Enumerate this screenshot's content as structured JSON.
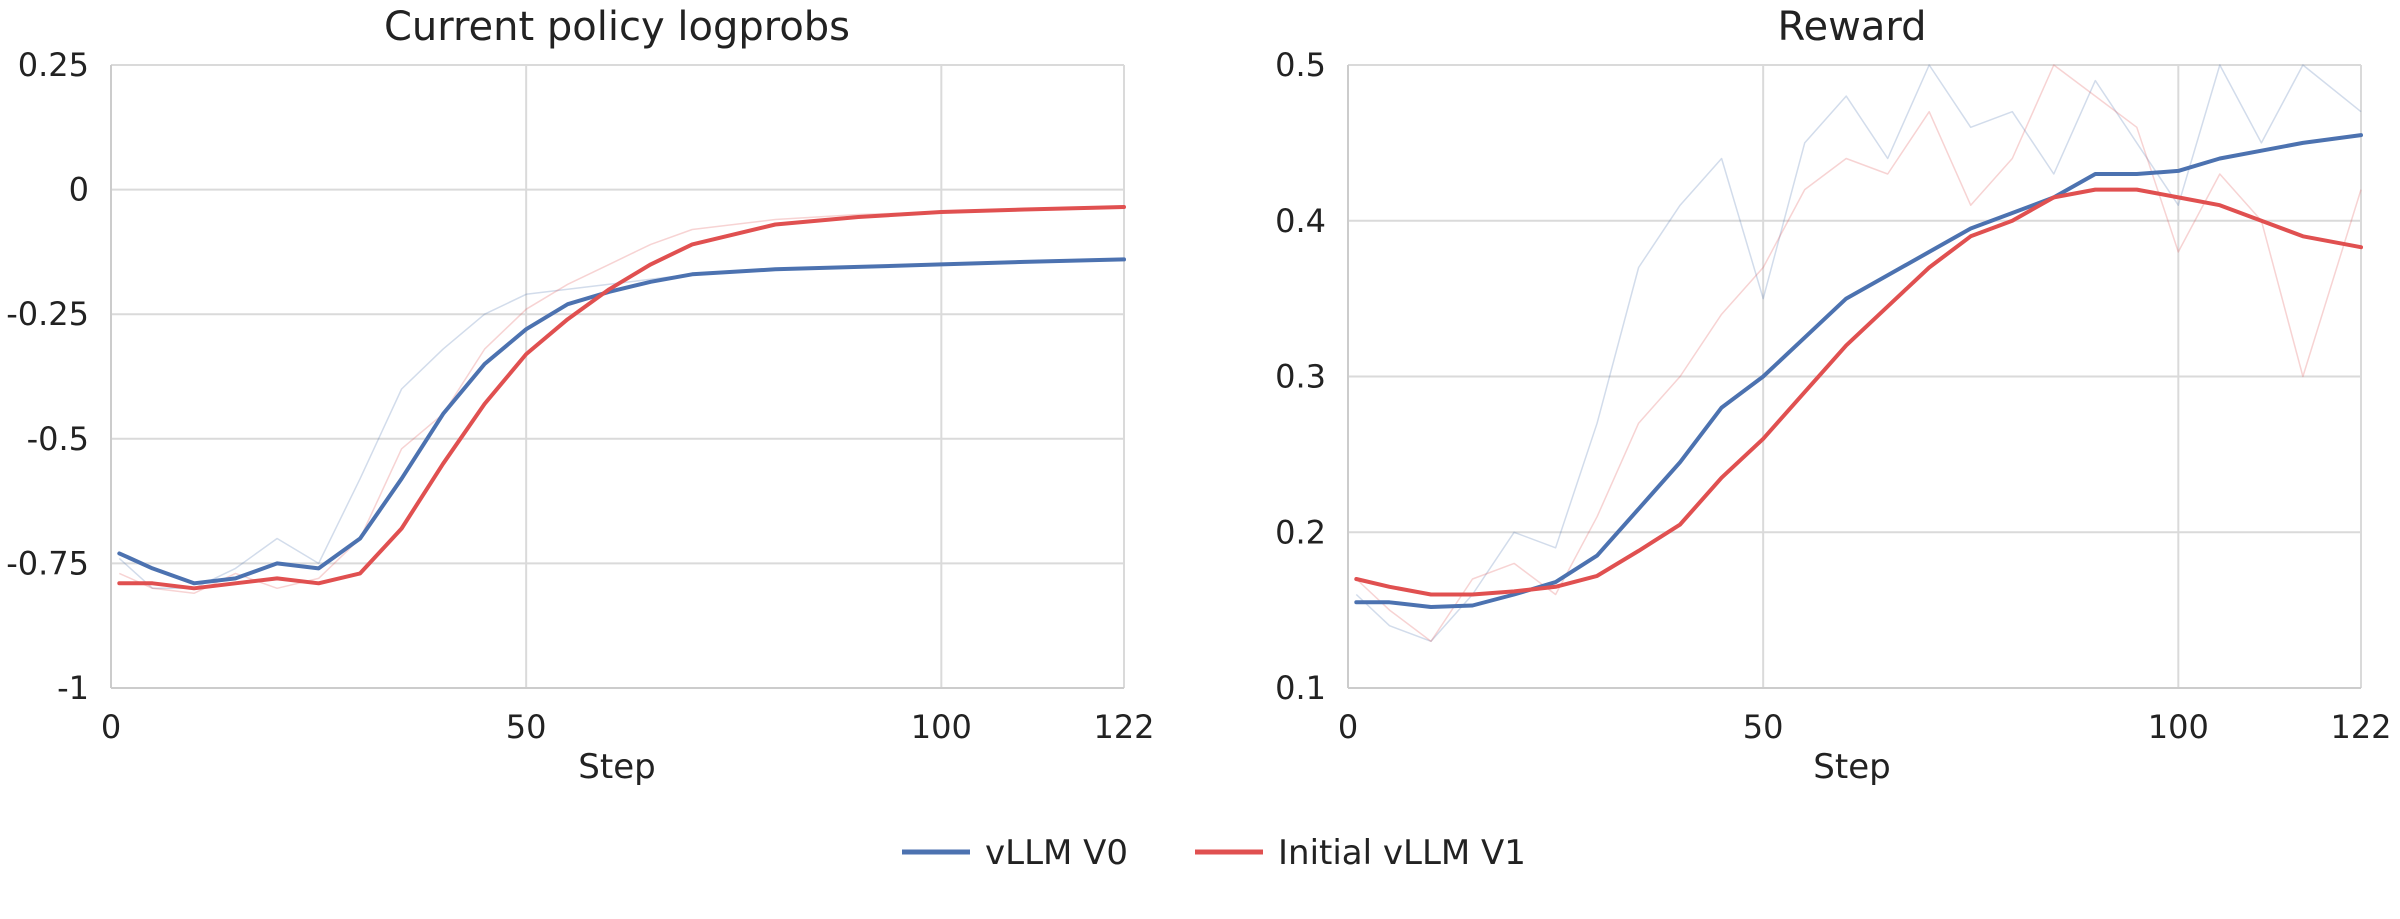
{
  "legend": {
    "placement": "bottom-center",
    "items": [
      {
        "label": "vLLM V0",
        "color": "#4c72b0"
      },
      {
        "label": "Initial vLLM V1",
        "color": "#e05050"
      }
    ]
  },
  "chart_data": [
    {
      "type": "line",
      "title": "Current policy logprobs",
      "xlabel": "Step",
      "ylabel": "",
      "xlim": [
        0,
        122
      ],
      "ylim": [
        -1,
        0.25
      ],
      "xticks": [
        0,
        50,
        100,
        122
      ],
      "xtick_labels": [
        "0",
        "50",
        "100",
        "122"
      ],
      "yticks": [
        -1,
        -0.75,
        -0.5,
        -0.25,
        0,
        0.25
      ],
      "ytick_labels": [
        "-1",
        "-0.75",
        "-0.5",
        "-0.25",
        "0",
        "0.25"
      ],
      "grid": true,
      "series": [
        {
          "name": "vLLM V0",
          "color": "#4c72b0",
          "x": [
            1,
            5,
            10,
            15,
            20,
            25,
            30,
            35,
            40,
            45,
            50,
            55,
            60,
            65,
            70,
            80,
            90,
            100,
            110,
            122
          ],
          "y": [
            -0.73,
            -0.76,
            -0.79,
            -0.78,
            -0.75,
            -0.76,
            -0.7,
            -0.58,
            -0.45,
            -0.35,
            -0.28,
            -0.23,
            -0.205,
            -0.185,
            -0.17,
            -0.16,
            -0.155,
            -0.15,
            -0.145,
            -0.14
          ],
          "raw_y": [
            -0.74,
            -0.8,
            -0.8,
            -0.76,
            -0.7,
            -0.75,
            -0.58,
            -0.4,
            -0.32,
            -0.25,
            -0.21,
            -0.2,
            -0.19,
            -0.18,
            -0.17,
            -0.16,
            -0.155,
            -0.15,
            -0.145,
            -0.14
          ]
        },
        {
          "name": "Initial vLLM V1",
          "color": "#e05050",
          "x": [
            1,
            5,
            10,
            15,
            20,
            25,
            30,
            35,
            40,
            45,
            50,
            55,
            60,
            65,
            70,
            80,
            90,
            100,
            110,
            122
          ],
          "y": [
            -0.79,
            -0.79,
            -0.8,
            -0.79,
            -0.78,
            -0.79,
            -0.77,
            -0.68,
            -0.55,
            -0.43,
            -0.33,
            -0.26,
            -0.2,
            -0.15,
            -0.11,
            -0.07,
            -0.055,
            -0.045,
            -0.04,
            -0.035
          ],
          "raw_y": [
            -0.77,
            -0.8,
            -0.81,
            -0.77,
            -0.8,
            -0.78,
            -0.7,
            -0.52,
            -0.45,
            -0.32,
            -0.24,
            -0.19,
            -0.15,
            -0.11,
            -0.08,
            -0.06,
            -0.05,
            -0.045,
            -0.04,
            -0.035
          ]
        }
      ]
    },
    {
      "type": "line",
      "title": "Reward",
      "xlabel": "Step",
      "ylabel": "",
      "xlim": [
        0,
        122
      ],
      "ylim": [
        0.1,
        0.5
      ],
      "xticks": [
        0,
        50,
        100,
        122
      ],
      "xtick_labels": [
        "0",
        "50",
        "100",
        "122"
      ],
      "yticks": [
        0.1,
        0.2,
        0.3,
        0.4,
        0.5
      ],
      "ytick_labels": [
        "0.1",
        "0.2",
        "0.3",
        "0.4",
        "0.5"
      ],
      "grid": true,
      "series": [
        {
          "name": "vLLM V0",
          "color": "#4c72b0",
          "x": [
            1,
            5,
            10,
            15,
            20,
            25,
            30,
            35,
            40,
            45,
            50,
            55,
            60,
            65,
            70,
            75,
            80,
            85,
            90,
            95,
            100,
            105,
            110,
            115,
            122
          ],
          "y": [
            0.155,
            0.155,
            0.152,
            0.153,
            0.16,
            0.168,
            0.185,
            0.215,
            0.245,
            0.28,
            0.3,
            0.325,
            0.35,
            0.365,
            0.38,
            0.395,
            0.405,
            0.415,
            0.43,
            0.43,
            0.432,
            0.44,
            0.445,
            0.45,
            0.455
          ],
          "raw_y": [
            0.16,
            0.14,
            0.13,
            0.16,
            0.2,
            0.19,
            0.27,
            0.37,
            0.41,
            0.44,
            0.35,
            0.45,
            0.48,
            0.44,
            0.5,
            0.46,
            0.47,
            0.43,
            0.49,
            0.45,
            0.41,
            0.5,
            0.45,
            0.5,
            0.47
          ]
        },
        {
          "name": "Initial vLLM V1",
          "color": "#e05050",
          "x": [
            1,
            5,
            10,
            15,
            20,
            25,
            30,
            35,
            40,
            45,
            50,
            55,
            60,
            65,
            70,
            75,
            80,
            85,
            90,
            95,
            100,
            105,
            110,
            115,
            122
          ],
          "y": [
            0.17,
            0.165,
            0.16,
            0.16,
            0.162,
            0.165,
            0.172,
            0.188,
            0.205,
            0.235,
            0.26,
            0.29,
            0.32,
            0.345,
            0.37,
            0.39,
            0.4,
            0.415,
            0.42,
            0.42,
            0.415,
            0.41,
            0.4,
            0.39,
            0.383
          ],
          "raw_y": [
            0.17,
            0.15,
            0.13,
            0.17,
            0.18,
            0.16,
            0.21,
            0.27,
            0.3,
            0.34,
            0.37,
            0.42,
            0.44,
            0.43,
            0.47,
            0.41,
            0.44,
            0.5,
            0.48,
            0.46,
            0.38,
            0.43,
            0.4,
            0.3,
            0.42
          ]
        }
      ]
    }
  ]
}
